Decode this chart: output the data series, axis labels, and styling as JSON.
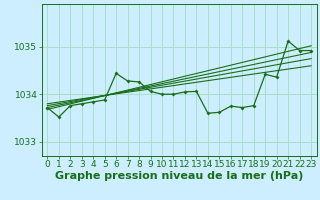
{
  "title": "Graphe pression niveau de la mer (hPa)",
  "background_color": "#cceeff",
  "grid_color": "#aaddcc",
  "line_color": "#1a6e1a",
  "ylim": [
    1032.7,
    1035.9
  ],
  "xlim": [
    -0.5,
    23.5
  ],
  "yticks": [
    1033,
    1034,
    1035
  ],
  "xticks": [
    0,
    1,
    2,
    3,
    4,
    5,
    6,
    7,
    8,
    9,
    10,
    11,
    12,
    13,
    14,
    15,
    16,
    17,
    18,
    19,
    20,
    21,
    22,
    23
  ],
  "x": [
    0,
    1,
    2,
    3,
    4,
    5,
    6,
    7,
    8,
    9,
    10,
    11,
    12,
    13,
    14,
    15,
    16,
    17,
    18,
    19,
    20,
    21,
    22,
    23
  ],
  "y_main": [
    1033.72,
    1033.52,
    1033.76,
    1033.8,
    1033.84,
    1033.88,
    1034.44,
    1034.28,
    1034.26,
    1034.06,
    1034.0,
    1034.0,
    1034.05,
    1034.06,
    1033.6,
    1033.62,
    1033.75,
    1033.72,
    1033.76,
    1034.42,
    1034.36,
    1035.12,
    1034.92,
    1034.92
  ],
  "trend_lines": [
    [
      1033.68,
      1035.02
    ],
    [
      1033.72,
      1034.88
    ],
    [
      1033.76,
      1034.75
    ],
    [
      1033.8,
      1034.6
    ]
  ],
  "trend_x": [
    0,
    23
  ],
  "title_fontsize": 8,
  "tick_fontsize": 6.5
}
